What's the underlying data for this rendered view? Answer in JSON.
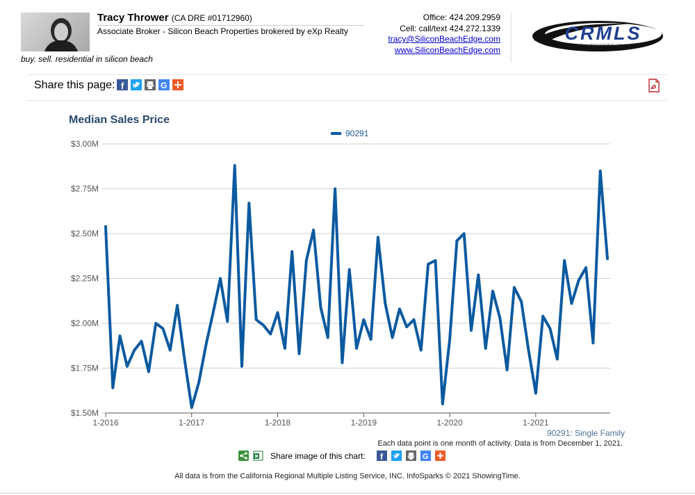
{
  "agent": {
    "name": "Tracy Thrower",
    "dre": "(CA DRE #01712960)",
    "title": "Associate Broker - Silicon Beach Properties brokered by eXp Realty",
    "tagline": "buy. sell. residential in silicon beach",
    "office": "Office: 424.209.2959",
    "cell": "Cell: call/text 424.272.1339",
    "email": "tracy@SiliconBeachEdge.com",
    "website": "www.SiliconBeachEdge.com"
  },
  "logo": {
    "text": "CRMLS",
    "subtext": "California Regional Multiple Listing Service, Inc."
  },
  "share": {
    "label": "Share this page:",
    "icons": [
      "facebook-icon",
      "twitter-icon",
      "print-icon",
      "google-icon",
      "plus-icon"
    ]
  },
  "chart_data": {
    "type": "line",
    "title": "Median Sales Price",
    "series": [
      {
        "name": "90291",
        "color": "#0b5aa0",
        "values": [
          2.54,
          1.64,
          1.93,
          1.76,
          1.85,
          1.9,
          1.73,
          2.0,
          1.97,
          1.85,
          2.1,
          1.8,
          1.53,
          1.67,
          1.88,
          2.06,
          2.25,
          2.01,
          2.88,
          1.76,
          2.67,
          2.02,
          1.99,
          1.94,
          2.06,
          1.86,
          2.4,
          1.83,
          2.35,
          2.52,
          2.09,
          1.92,
          2.75,
          1.78,
          2.3,
          1.86,
          2.02,
          1.91,
          2.48,
          2.11,
          1.92,
          2.08,
          1.98,
          2.02,
          1.85,
          2.33,
          2.35,
          1.55,
          1.91,
          2.46,
          2.5,
          1.96,
          2.27,
          1.86,
          2.18,
          2.03,
          1.74,
          2.2,
          2.12,
          1.85,
          1.61,
          2.04,
          1.97,
          1.8,
          2.35,
          2.11,
          2.24,
          2.31,
          1.89,
          2.85,
          2.36
        ]
      }
    ],
    "x_start": "1-2016",
    "x_end": "11-2021",
    "xticks": [
      "1-2016",
      "1-2017",
      "1-2018",
      "1-2019",
      "1-2020",
      "1-2021"
    ],
    "yticks": [
      "$1.50M",
      "$1.75M",
      "$2.00M",
      "$2.25M",
      "$2.50M",
      "$2.75M",
      "$3.00M"
    ],
    "ylim": [
      1.5,
      3.0
    ],
    "unit": "$M",
    "grid": true,
    "legend": "top-center"
  },
  "notes": {
    "series_label": "90291: Single Family",
    "data_note": "Each data point is one month of activity. Data is from December 1, 2021.",
    "share_chart_label": "Share image of this chart:",
    "footer": "All data is from the California Regional Multiple Listing Service, INC. InfoSparks © 2021 ShowingTime."
  }
}
